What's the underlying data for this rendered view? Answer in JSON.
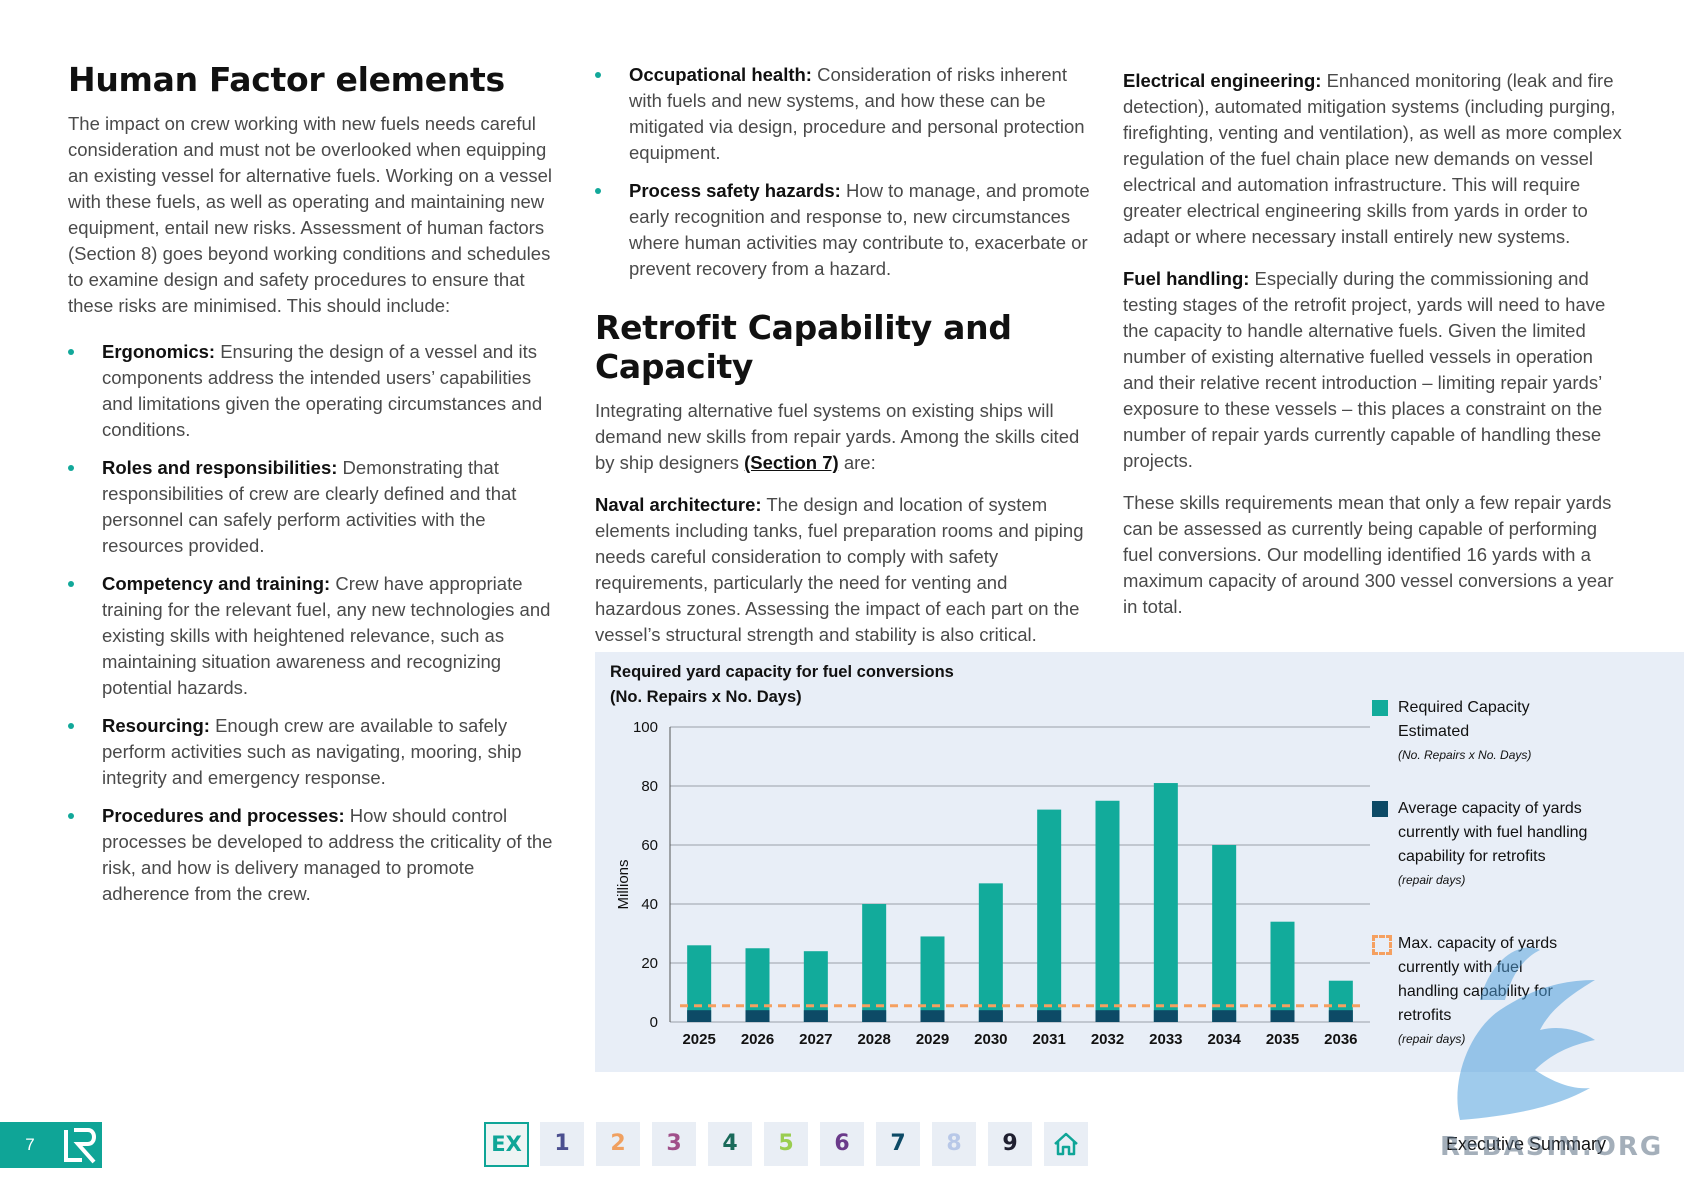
{
  "col1": {
    "heading": "Human Factor elements",
    "intro": "The impact on crew working with new fuels needs careful consideration and must not be overlooked when equipping an existing vessel for alternative fuels. Working on a vessel with these fuels, as well as operating and maintaining new equipment, entail new risks. Assessment of human factors (Section 8) goes beyond working conditions and schedules to examine design and safety procedures to ensure that these risks are minimised. This should include:",
    "bullets": [
      {
        "term": "Ergonomics:",
        "text": " Ensuring the design of a vessel and its components address the intended users’ capabilities and limitations given the operating circumstances and conditions."
      },
      {
        "term": "Roles and responsibilities:",
        "text": " Demonstrating that responsibilities of crew are clearly defined and that personnel can safely perform activities with the resources provided."
      },
      {
        "term": "Competency and training:",
        "text": " Crew have appropriate training for the relevant fuel, any new technologies and existing skills with heightened relevance, such as maintaining situation awareness and recognizing potential hazards."
      },
      {
        "term": "Resourcing:",
        "text": " Enough crew are available to safely perform activities such as navigating, mooring, ship integrity and emergency response."
      },
      {
        "term": "Procedures and processes:",
        "text": " How should control processes be developed to address the criticality of the risk, and how is delivery managed to promote adherence from the crew."
      }
    ]
  },
  "col2": {
    "bullets": [
      {
        "term": "Occupational health:",
        "text": " Consideration of risks inherent with fuels and new systems, and how these can be mitigated via design, procedure and personal protection equipment."
      },
      {
        "term": "Process safety hazards:",
        "text": " How to manage, and promote early recognition and response to, new circumstances where human activities may contribute to, exacerbate or prevent recovery from a hazard."
      }
    ],
    "heading": "Retrofit Capability and Capacity",
    "intro_before": "Integrating alternative fuel systems on existing ships will demand new skills from repair yards. Among the skills cited by ship designers ",
    "intro_link": "(Section 7)",
    "intro_after": " are:",
    "naval_term": "Naval architecture:",
    "naval_text": " The design and location of system elements including tanks, fuel preparation rooms and piping needs careful consideration to comply with safety requirements, particularly the need for venting and hazardous zones. Assessing the impact of each part on the vessel’s structural strength and stability is also critical."
  },
  "col3": {
    "electrical_term": "Electrical engineering:",
    "electrical_text": " Enhanced monitoring (leak and fire detection), automated mitigation systems (including purging, firefighting, venting and ventilation), as well as more complex regulation of the fuel chain place new demands on vessel electrical and automation infrastructure. This will require greater electrical engineering skills from yards in order to adapt or where necessary install entirely new systems.",
    "fuel_term": "Fuel handling:",
    "fuel_text": " Especially during the commissioning and testing stages of the retrofit project, yards will need to have the capacity to handle alternative fuels. Given the limited number of existing alternative fuelled vessels in operation and their relative recent introduction – limiting repair yards’ exposure to these vessels – this places a constraint on the number of repair yards currently capable of handling these projects.",
    "skills_text": "These skills requirements mean that only a few repair yards can be assessed as currently being capable of performing fuel conversions. Our modelling identified 16 yards with a maximum capacity of around 300 vessel conversions a year in total."
  },
  "chart_data": {
    "type": "bar",
    "title_line1": "Required yard capacity for fuel conversions",
    "title_line2": "(No. Repairs x No. Days)",
    "ylabel": "Millions",
    "ylim": [
      0,
      100
    ],
    "yticks": [
      0,
      20,
      40,
      60,
      80,
      100
    ],
    "grid": true,
    "legend_position": "right",
    "categories": [
      "2025",
      "2026",
      "2027",
      "2028",
      "2029",
      "2030",
      "2031",
      "2032",
      "2033",
      "2034",
      "2035",
      "2036"
    ],
    "series": [
      {
        "name": "Required Capacity Estimated",
        "note": "(No. Repairs x No. Days)",
        "color": "#12ab9b",
        "values": [
          26,
          25,
          24,
          40,
          29,
          47,
          72,
          75,
          81,
          60,
          34,
          14
        ]
      },
      {
        "name": "Average capacity of yards currently with fuel handling capability for retrofits",
        "note": "(repair days)",
        "color": "#0d4a66",
        "values": [
          4,
          4,
          4,
          4,
          4,
          4,
          4,
          4,
          4,
          4,
          4,
          4
        ]
      },
      {
        "name": "Max. capacity of yards currently with fuel handling capability for retrofits",
        "note": "(repair days)",
        "color": "#f5a060",
        "values": [
          5.5,
          5.5,
          5.5,
          5.5,
          5.5,
          5.5,
          5.5,
          5.5,
          5.5,
          5.5,
          5.5,
          5.5
        ]
      }
    ]
  },
  "footer": {
    "page_number": "7",
    "nav": [
      "EX",
      "1",
      "2",
      "3",
      "4",
      "5",
      "6",
      "7",
      "8",
      "9"
    ],
    "nav_colors": [
      "#0fa597",
      "#4b4f8f",
      "#f0a060",
      "#a0508a",
      "#1a6a5a",
      "#9acd50",
      "#6a3a8a",
      "#0d4a66",
      "#b8c8e8",
      "#202030"
    ],
    "section_label": "Executive Summary",
    "watermark": "REBASIN.ORG"
  }
}
